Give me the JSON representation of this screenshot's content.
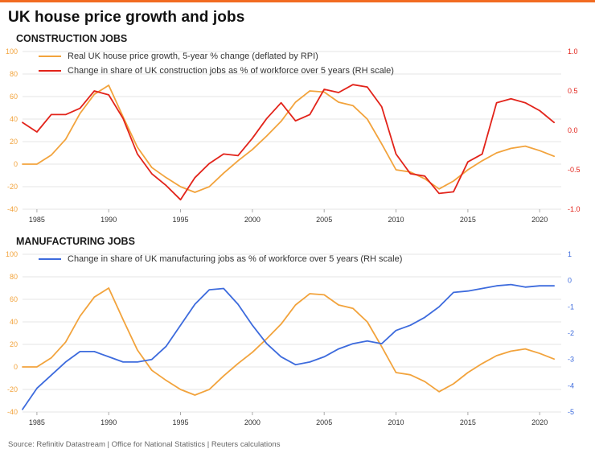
{
  "page": {
    "title": "UK house price growth and jobs",
    "source": "Source: Refinitiv Datastream | Office for National Statistics | Reuters calculations"
  },
  "colors": {
    "accent": "#F26B21",
    "orange": "#F2A33C",
    "red": "#E2231A",
    "blue": "#3D6BDD",
    "grid": "#E4E4E4",
    "tick_mark": "#AAAAAA",
    "x_text": "#333333"
  },
  "chart_data": [
    {
      "type": "line",
      "title": "CONSTRUCTION JOBS",
      "x_range": [
        1984,
        2021.5
      ],
      "x": [
        1984,
        1985,
        1986,
        1987,
        1988,
        1989,
        1990,
        1991,
        1992,
        1993,
        1994,
        1995,
        1996,
        1997,
        1998,
        1999,
        2000,
        2001,
        2002,
        2003,
        2004,
        2005,
        2006,
        2007,
        2008,
        2009,
        2010,
        2011,
        2012,
        2013,
        2014,
        2015,
        2016,
        2017,
        2018,
        2019,
        2020,
        2021
      ],
      "x_ticks": [
        1985,
        1990,
        1995,
        2000,
        2005,
        2010,
        2015,
        2020
      ],
      "left_axis": {
        "min": -40,
        "max": 100,
        "color_key": "orange",
        "ticks": [
          "100",
          "80",
          "60",
          "40",
          "20",
          "0",
          "-20",
          "-40"
        ]
      },
      "right_axis": {
        "min": -1.0,
        "max": 1.0,
        "color_key": "red",
        "ticks": [
          "1.0",
          "0.5",
          "0.0",
          "-0.5",
          "-1.0"
        ]
      },
      "series": [
        {
          "name": "Real UK house price growth, 5-year % change (deflated by RPI)",
          "color_key": "orange",
          "axis": "left",
          "show_in_legend": true,
          "values": [
            0,
            0,
            8,
            22,
            45,
            62,
            70,
            42,
            15,
            -3,
            -12,
            -20,
            -25,
            -20,
            -8,
            3,
            13,
            25,
            38,
            55,
            65,
            64,
            55,
            52,
            40,
            18,
            -5,
            -7,
            -13,
            -22,
            -15,
            -5,
            3,
            10,
            14,
            16,
            12,
            7
          ]
        },
        {
          "name": "Change in share of UK construction jobs as % of workforce over 5 years (RH scale)",
          "color_key": "red",
          "axis": "right",
          "show_in_legend": true,
          "values": [
            0.1,
            -0.02,
            0.2,
            0.2,
            0.28,
            0.5,
            0.45,
            0.15,
            -0.3,
            -0.55,
            -0.7,
            -0.88,
            -0.6,
            -0.42,
            -0.3,
            -0.32,
            -0.1,
            0.15,
            0.35,
            0.12,
            0.2,
            0.52,
            0.48,
            0.58,
            0.55,
            0.3,
            -0.3,
            -0.55,
            -0.58,
            -0.8,
            -0.78,
            -0.4,
            -0.3,
            0.35,
            0.4,
            0.35,
            0.25,
            0.1
          ]
        }
      ]
    },
    {
      "type": "line",
      "title": "MANUFACTURING JOBS",
      "x_range": [
        1984,
        2021.5
      ],
      "x": [
        1984,
        1985,
        1986,
        1987,
        1988,
        1989,
        1990,
        1991,
        1992,
        1993,
        1994,
        1995,
        1996,
        1997,
        1998,
        1999,
        2000,
        2001,
        2002,
        2003,
        2004,
        2005,
        2006,
        2007,
        2008,
        2009,
        2010,
        2011,
        2012,
        2013,
        2014,
        2015,
        2016,
        2017,
        2018,
        2019,
        2020,
        2021
      ],
      "x_ticks": [
        1985,
        1990,
        1995,
        2000,
        2005,
        2010,
        2015,
        2020
      ],
      "left_axis": {
        "min": -40,
        "max": 100,
        "color_key": "orange",
        "ticks": [
          "100",
          "80",
          "60",
          "40",
          "20",
          "0",
          "-20",
          "-40"
        ]
      },
      "right_axis": {
        "min": -5,
        "max": 1,
        "color_key": "blue",
        "ticks": [
          "1",
          "0",
          "-1",
          "-2",
          "-3",
          "-4",
          "-5"
        ]
      },
      "series": [
        {
          "name": "Real UK house price growth, 5-year % change (deflated by RPI)",
          "color_key": "orange",
          "axis": "left",
          "show_in_legend": false,
          "values": [
            0,
            0,
            8,
            22,
            45,
            62,
            70,
            42,
            15,
            -3,
            -12,
            -20,
            -25,
            -20,
            -8,
            3,
            13,
            25,
            38,
            55,
            65,
            64,
            55,
            52,
            40,
            18,
            -5,
            -7,
            -13,
            -22,
            -15,
            -5,
            3,
            10,
            14,
            16,
            12,
            7
          ]
        },
        {
          "name": "Change in share of UK manufacturing jobs as % of workforce over 5 years (RH scale)",
          "color_key": "blue",
          "axis": "right",
          "show_in_legend": true,
          "values": [
            -4.9,
            -4.1,
            -3.6,
            -3.1,
            -2.7,
            -2.7,
            -2.9,
            -3.1,
            -3.1,
            -3.0,
            -2.5,
            -1.7,
            -0.9,
            -0.35,
            -0.3,
            -0.9,
            -1.7,
            -2.4,
            -2.9,
            -3.2,
            -3.1,
            -2.9,
            -2.6,
            -2.4,
            -2.3,
            -2.4,
            -1.9,
            -1.7,
            -1.4,
            -1.0,
            -0.45,
            -0.4,
            -0.3,
            -0.2,
            -0.15,
            -0.25,
            -0.2,
            -0.2
          ]
        }
      ]
    }
  ]
}
